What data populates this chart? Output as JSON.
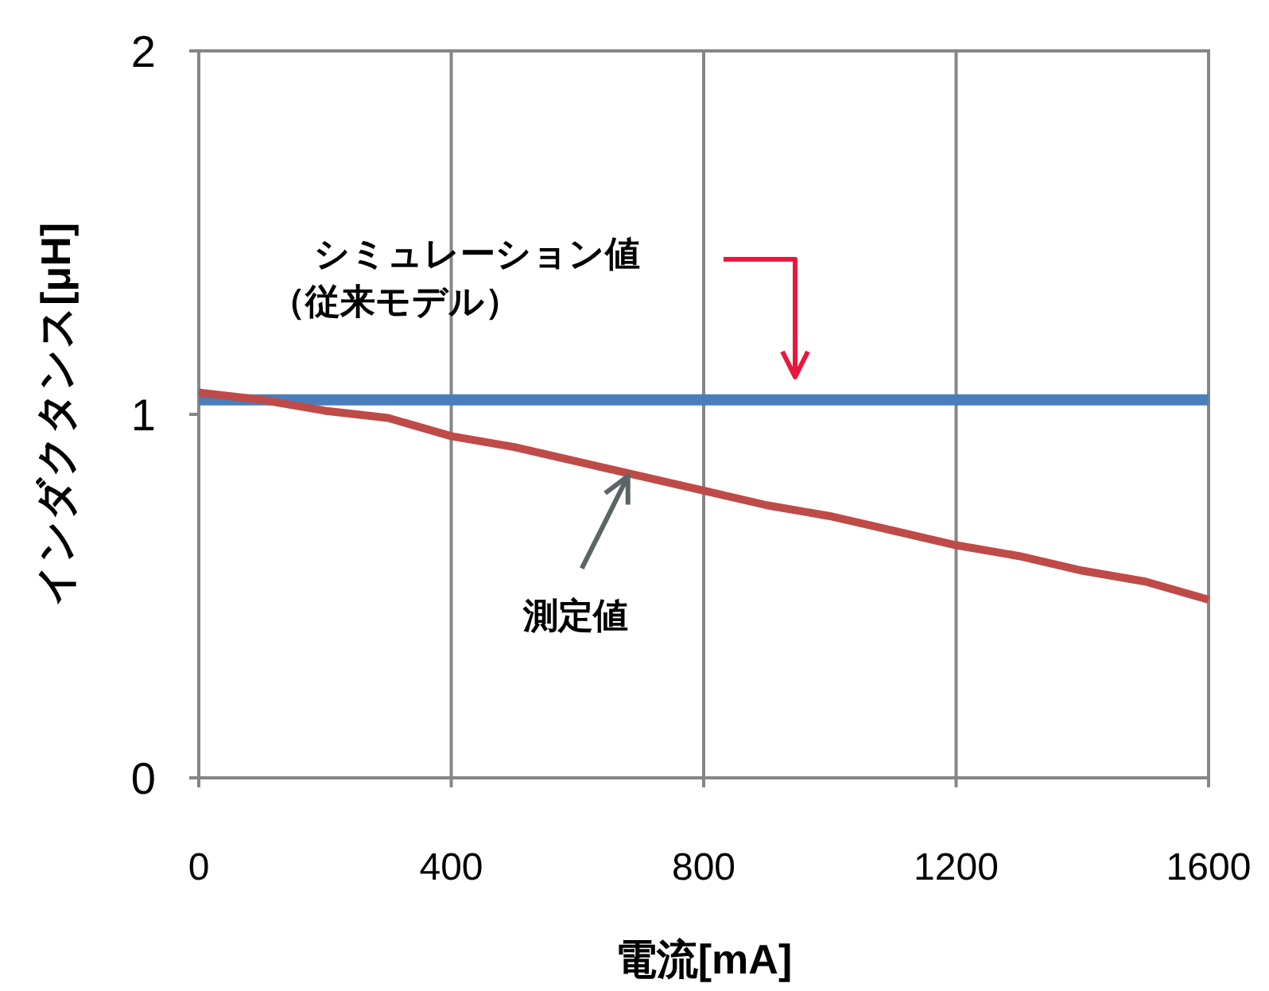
{
  "chart_data": {
    "type": "line",
    "xlabel": "電流[mA]",
    "ylabel": "インダクタンス[μH]",
    "xlim": [
      0,
      1600
    ],
    "ylim": [
      0,
      2
    ],
    "xticks": [
      0,
      400,
      800,
      1200,
      1600
    ],
    "yticks": [
      0,
      1,
      2
    ],
    "grid": "x",
    "marker": "none",
    "line_style": "solid",
    "series": [
      {
        "x": [
          0,
          1600
        ],
        "values": [
          1.04,
          1.04
        ],
        "color": "#4a7ebb"
      },
      {
        "x": [
          0,
          100,
          200,
          300,
          400,
          500,
          600,
          700,
          800,
          900,
          1000,
          1100,
          1200,
          1300,
          1400,
          1500,
          1600
        ],
        "values": [
          1.06,
          1.04,
          1.01,
          0.99,
          0.94,
          0.91,
          0.87,
          0.83,
          0.79,
          0.75,
          0.72,
          0.68,
          0.64,
          0.61,
          0.57,
          0.54,
          0.49
        ],
        "color": "#be4b48"
      }
    ],
    "annotations": [
      "シミュレーション値",
      "（従来モデル）",
      {
        "text": "測定値",
        "x": 680,
        "y": 0.83
      }
    ]
  }
}
